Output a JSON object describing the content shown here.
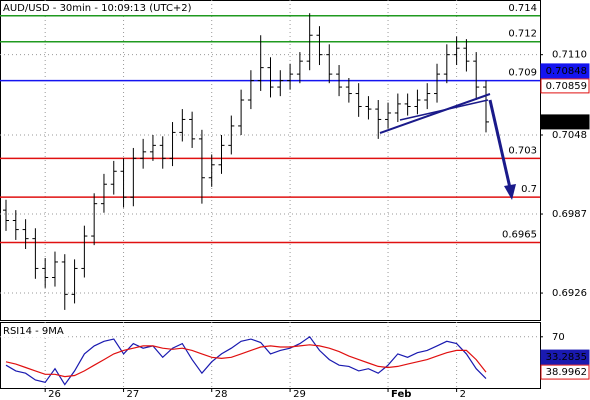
{
  "chart_data": [
    {
      "type": "ohlc",
      "title": "AUD/USD - 30min - 10:09:13 (UTC+2)",
      "categories": [
        null,
        null,
        null,
        null,
        "26",
        null,
        null,
        null,
        null,
        null,
        null,
        null,
        "27",
        null,
        null,
        null,
        null,
        null,
        null,
        null,
        null,
        "28",
        null,
        null,
        null,
        null,
        null,
        null,
        null,
        "29",
        null,
        null,
        null,
        null,
        null,
        null,
        null,
        null,
        null,
        "Feb",
        null,
        null,
        null,
        null,
        null,
        null,
        "2",
        null,
        null,
        null
      ],
      "open": [
        0.699,
        0.6982,
        0.6975,
        0.6968,
        0.6945,
        0.6938,
        0.695,
        0.6925,
        0.6945,
        0.697,
        0.6995,
        0.701,
        0.702,
        0.7,
        0.703,
        0.7035,
        0.704,
        0.703,
        0.705,
        0.706,
        0.7045,
        0.7015,
        0.7025,
        0.704,
        0.7055,
        0.7075,
        0.709,
        0.71,
        0.7085,
        0.709,
        0.7095,
        0.7105,
        0.7125,
        0.711,
        0.7095,
        0.7085,
        0.708,
        0.707,
        0.7068,
        0.706,
        0.7065,
        0.7072,
        0.707,
        0.7075,
        0.708,
        0.7095,
        0.711,
        0.7115,
        0.7105,
        0.7085
      ],
      "high": [
        0.6998,
        0.699,
        0.6983,
        0.6976,
        0.6953,
        0.6958,
        0.6956,
        0.6952,
        0.6978,
        0.7003,
        0.7018,
        0.7028,
        0.703,
        0.7038,
        0.7045,
        0.7048,
        0.7047,
        0.7058,
        0.7068,
        0.7066,
        0.7052,
        0.7033,
        0.7048,
        0.7063,
        0.7083,
        0.7098,
        0.7125,
        0.7108,
        0.7098,
        0.7103,
        0.7112,
        0.7142,
        0.7132,
        0.7118,
        0.7102,
        0.7092,
        0.7088,
        0.7078,
        0.7075,
        0.7073,
        0.708,
        0.708,
        0.7083,
        0.7088,
        0.7103,
        0.7118,
        0.7124,
        0.7122,
        0.7112,
        0.709
      ],
      "low": [
        0.6974,
        0.6967,
        0.696,
        0.6937,
        0.693,
        0.6931,
        0.6913,
        0.6918,
        0.6938,
        0.6963,
        0.6988,
        0.7002,
        0.6992,
        0.6993,
        0.7022,
        0.7028,
        0.7022,
        0.7024,
        0.7043,
        0.7038,
        0.6995,
        0.7008,
        0.7018,
        0.7033,
        0.7048,
        0.7068,
        0.7082,
        0.7077,
        0.7078,
        0.7083,
        0.7088,
        0.7098,
        0.7102,
        0.7088,
        0.7078,
        0.7073,
        0.7062,
        0.706,
        0.7045,
        0.7053,
        0.7058,
        0.7063,
        0.7064,
        0.7068,
        0.7073,
        0.7088,
        0.7102,
        0.7097,
        0.7075,
        0.705
      ],
      "close": [
        0.6982,
        0.6975,
        0.6968,
        0.6945,
        0.6938,
        0.695,
        0.6925,
        0.6945,
        0.697,
        0.6995,
        0.701,
        0.702,
        0.7,
        0.703,
        0.7035,
        0.704,
        0.703,
        0.705,
        0.706,
        0.7045,
        0.7015,
        0.7025,
        0.704,
        0.7055,
        0.7075,
        0.709,
        0.71,
        0.7085,
        0.709,
        0.7095,
        0.7105,
        0.7125,
        0.711,
        0.7095,
        0.7085,
        0.708,
        0.707,
        0.7068,
        0.706,
        0.7065,
        0.7072,
        0.707,
        0.7075,
        0.708,
        0.7095,
        0.711,
        0.7115,
        0.7105,
        0.7085,
        0.70581
      ],
      "color": "#000000",
      "ylim": [
        0.69052,
        0.71522
      ],
      "yticks": [
        {
          "value": 0.711,
          "label": "0.7110"
        },
        0.7048,
        0.6987,
        0.6926
      ],
      "levels": [
        {
          "value": 0.714,
          "color": "#1f9a1f"
        },
        {
          "value": 0.712,
          "color": "#1f9a1f"
        },
        {
          "value": 0.709,
          "color": "#1414f0"
        },
        {
          "value": 0.703,
          "color": "#e01010"
        },
        {
          "value": 0.7,
          "color": "#e01010"
        },
        {
          "value": 0.6965,
          "color": "#e01010"
        }
      ],
      "price_labels": [
        {
          "value": 0.70859,
          "color": "#e01010",
          "style": "outline"
        },
        {
          "value": 0.70848,
          "color": "#1414f0",
          "style": "fill"
        }
      ],
      "last_color": "#000000",
      "grid": true
    },
    {
      "type": "line",
      "title": "RSI14 - 9MA",
      "series": [
        {
          "color": "#1a1ab0",
          "values": [
            45,
            40,
            38,
            32,
            30,
            42,
            28,
            40,
            55,
            62,
            66,
            68,
            55,
            64,
            60,
            62,
            52,
            60,
            64,
            50,
            38,
            48,
            55,
            60,
            66,
            68,
            65,
            55,
            58,
            60,
            64,
            70,
            58,
            50,
            45,
            44,
            40,
            42,
            38,
            45,
            55,
            52,
            56,
            58,
            62,
            66,
            64,
            55,
            42,
            33.2835
          ],
          "style": "fill"
        },
        {
          "color": "#e01010",
          "values": [
            48,
            46,
            43,
            40,
            37,
            37,
            35,
            36,
            40,
            45,
            50,
            55,
            58,
            60,
            62,
            62,
            60,
            59,
            60,
            58,
            55,
            52,
            51,
            52,
            55,
            58,
            61,
            62,
            61,
            61,
            62,
            63,
            62,
            60,
            57,
            53,
            50,
            47,
            44,
            43,
            44,
            46,
            48,
            50,
            53,
            56,
            58,
            58,
            50,
            38.9962
          ],
          "style": "outline"
        }
      ],
      "ylim": [
        25,
        83
      ],
      "yticks": [
        70
      ],
      "grid": true
    }
  ]
}
